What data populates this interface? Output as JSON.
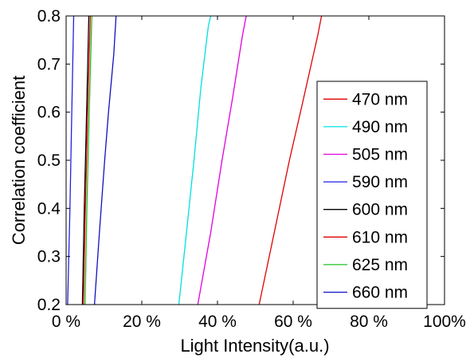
{
  "chart_data": {
    "type": "line",
    "xlabel": "Light Intensity(a.u.)",
    "ylabel": "Correlation coefficient",
    "xlim": [
      0,
      100
    ],
    "ylim": [
      0.2,
      0.8
    ],
    "xticks": [
      0,
      20,
      40,
      60,
      80,
      100
    ],
    "xtick_labels": [
      "0 %",
      "20 %",
      "40 %",
      "60 %",
      "80 %",
      "100%"
    ],
    "yticks": [
      0.2,
      0.3,
      0.4,
      0.5,
      0.6,
      0.7,
      0.8
    ],
    "ytick_labels": [
      "0.2",
      "0.3",
      "0.4",
      "0.5",
      "0.6",
      "0.7",
      "0.8"
    ],
    "grid": false,
    "legend_position": "right",
    "series": [
      {
        "name": "470 nm",
        "color": "#e00000",
        "points": [
          [
            51.0,
            0.2
          ],
          [
            55.0,
            0.35
          ],
          [
            59.0,
            0.5
          ],
          [
            62.5,
            0.62
          ],
          [
            66.5,
            0.76
          ],
          [
            67.5,
            0.8
          ]
        ]
      },
      {
        "name": "490 nm",
        "color": "#00e0e0",
        "points": [
          [
            29.8,
            0.2
          ],
          [
            31.8,
            0.35
          ],
          [
            33.8,
            0.5
          ],
          [
            35.6,
            0.65
          ],
          [
            37.6,
            0.78
          ],
          [
            38.2,
            0.8
          ]
        ]
      },
      {
        "name": "505 nm",
        "color": "#e000e0",
        "points": [
          [
            34.8,
            0.2
          ],
          [
            38.2,
            0.35
          ],
          [
            41.2,
            0.5
          ],
          [
            44.0,
            0.63
          ],
          [
            46.6,
            0.76
          ],
          [
            47.6,
            0.8
          ]
        ]
      },
      {
        "name": "590 nm",
        "color": "#2020e0",
        "points": [
          [
            0.4,
            0.2
          ],
          [
            1.0,
            0.4
          ],
          [
            1.5,
            0.6
          ],
          [
            2.0,
            0.8
          ]
        ]
      },
      {
        "name": "600 nm",
        "color": "#000000",
        "points": [
          [
            4.3,
            0.2
          ],
          [
            4.8,
            0.4
          ],
          [
            5.4,
            0.6
          ],
          [
            6.0,
            0.8
          ]
        ]
      },
      {
        "name": "610 nm",
        "color": "#e00000",
        "points": [
          [
            4.6,
            0.2
          ],
          [
            5.1,
            0.4
          ],
          [
            5.7,
            0.6
          ],
          [
            6.4,
            0.8
          ]
        ]
      },
      {
        "name": "625 nm",
        "color": "#20c020",
        "points": [
          [
            5.0,
            0.2
          ],
          [
            5.5,
            0.4
          ],
          [
            6.1,
            0.6
          ],
          [
            6.8,
            0.8
          ]
        ]
      },
      {
        "name": "660 nm",
        "color": "#1010c0",
        "points": [
          [
            7.5,
            0.2
          ],
          [
            8.8,
            0.35
          ],
          [
            10.2,
            0.5
          ],
          [
            11.2,
            0.6
          ],
          [
            12.6,
            0.72
          ],
          [
            13.2,
            0.8
          ]
        ]
      }
    ]
  }
}
